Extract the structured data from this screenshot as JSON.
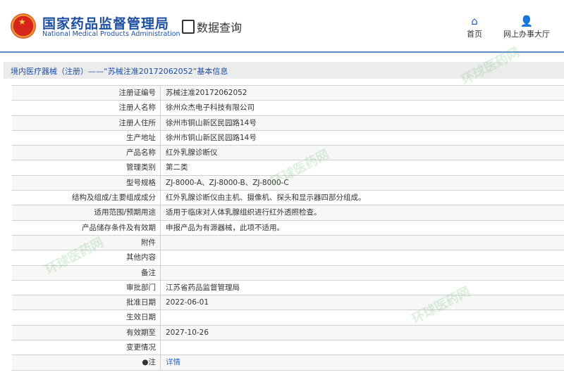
{
  "header": {
    "title_cn": "国家药品监督管理局",
    "title_en": "National Medical Products Administration",
    "query": "数据查询",
    "nav": [
      {
        "label": "首页",
        "icon": "home-icon"
      },
      {
        "label": "网上办事大厅",
        "icon": "user-icon"
      }
    ]
  },
  "breadcrumb": "境内医疗器械（注册）——“苏械注准20172062052”基本信息",
  "rows": [
    {
      "label": "注册证编号",
      "value": "苏械注准20172062052"
    },
    {
      "label": "注册人名称",
      "value": "徐州众杰电子科技有限公司"
    },
    {
      "label": "注册人住所",
      "value": "徐州市铜山新区民园路14号"
    },
    {
      "label": "生产地址",
      "value": "徐州市铜山新区民园路14号"
    },
    {
      "label": "产品名称",
      "value": "红外乳腺诊断仪"
    },
    {
      "label": "管理类别",
      "value": "第二类"
    },
    {
      "label": "型号规格",
      "value": "ZJ-8000-A、ZJ-8000-B、ZJ-8000-C"
    },
    {
      "label": "结构及组成/主要组成成分",
      "value": "红外乳腺诊断仪由主机、摄像机、探头和显示器四部分组成。"
    },
    {
      "label": "适用范围/预期用途",
      "value": "适用于临床对人体乳腺组织进行红外透照检查。"
    },
    {
      "label": "产品储存条件及有效期",
      "value": "申报产品为有源器械，此项不适用。"
    },
    {
      "label": "附件",
      "value": ""
    },
    {
      "label": "其他内容",
      "value": ""
    },
    {
      "label": "备注",
      "value": ""
    },
    {
      "label": "审批部门",
      "value": "江苏省药品监督管理局"
    },
    {
      "label": "批准日期",
      "value": "2022-06-01"
    },
    {
      "label": "生效日期",
      "value": ""
    },
    {
      "label": "有效期至",
      "value": "2027-10-26"
    },
    {
      "label": "变更情况",
      "value": ""
    },
    {
      "label": "●注",
      "value": "详情"
    }
  ],
  "watermark": "环球医药网"
}
